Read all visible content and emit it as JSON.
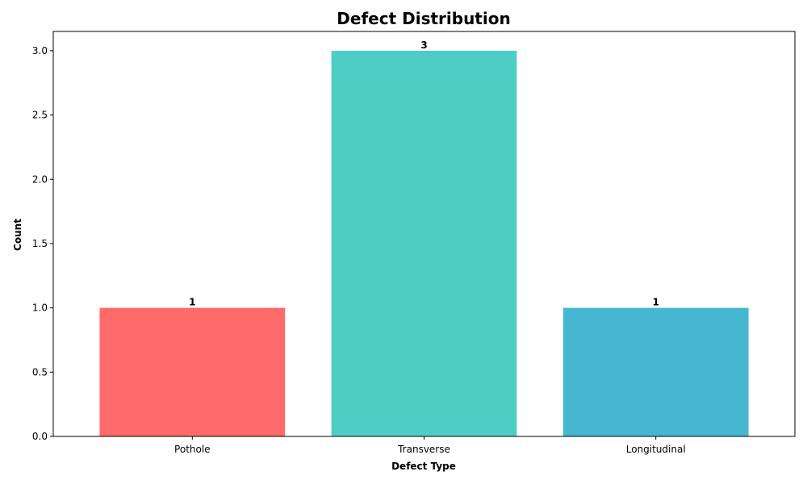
{
  "chart_data": {
    "type": "bar",
    "title": "Defect Distribution",
    "xlabel": "Defect Type",
    "ylabel": "Count",
    "categories": [
      "Pothole",
      "Transverse",
      "Longitudinal"
    ],
    "values": [
      1,
      3,
      1
    ],
    "value_labels": [
      "1",
      "3",
      "1"
    ],
    "colors": [
      "#FF6B6B",
      "#4ECDC4",
      "#45B7D1"
    ],
    "ylim": [
      0,
      3.15
    ],
    "yticks": [
      0.0,
      0.5,
      1.0,
      1.5,
      2.0,
      2.5,
      3.0
    ],
    "ytick_labels": [
      "0.0",
      "0.5",
      "1.0",
      "1.5",
      "2.0",
      "2.5",
      "3.0"
    ],
    "grid": false,
    "legend": "none"
  }
}
